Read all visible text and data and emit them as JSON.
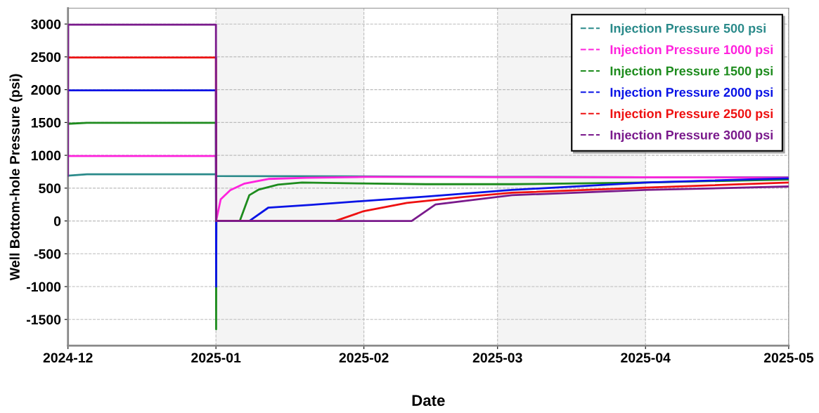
{
  "chart_data": {
    "type": "line",
    "xlabel": "Date",
    "ylabel": "Well Bottom-hole Pressure (psi)",
    "xlim": [
      "2024-12-01",
      "2025-05-01"
    ],
    "xticks": [
      {
        "value": "2024-12-01",
        "label": "2024-12"
      },
      {
        "value": "2025-01-01",
        "label": "2025-01"
      },
      {
        "value": "2025-02-01",
        "label": "2025-02"
      },
      {
        "value": "2025-03-01",
        "label": "2025-03"
      },
      {
        "value": "2025-04-01",
        "label": "2025-04"
      },
      {
        "value": "2025-05-01",
        "label": "2025-05"
      }
    ],
    "ylim": [
      -1900,
      3240
    ],
    "yticks": [
      -1500,
      -1000,
      -500,
      0,
      500,
      1000,
      1500,
      2000,
      2500,
      3000
    ],
    "grid": true,
    "legend": "top right",
    "line_style": "solid",
    "marker": "none",
    "bands": [
      {
        "axis": "x",
        "from": "2025-01-01",
        "to": "2025-02-01",
        "label": null,
        "color": "#f4f4f4"
      },
      {
        "axis": "x",
        "from": "2025-03-01",
        "to": "2025-04-01",
        "label": null,
        "color": "#f4f4f4"
      }
    ],
    "series": [
      {
        "name": "Injection Pressure 500 psi",
        "color": "#2a8a8a",
        "x": [
          "2024-12-01",
          "2024-12-05",
          "2025-01-01T00:00",
          "2025-01-01T02:00",
          "2025-02-01",
          "2025-03-01",
          "2025-04-01",
          "2025-05-01"
        ],
        "values": [
          690,
          710,
          710,
          685,
          678,
          672,
          665,
          665
        ]
      },
      {
        "name": "Injection Pressure 1000 psi",
        "color": "#ff22dd",
        "x": [
          "2024-12-01",
          "2025-01-01T00:00",
          "2025-01-01T01:00",
          "2025-01-02",
          "2025-01-04",
          "2025-01-07",
          "2025-01-12",
          "2025-01-20",
          "2025-02-01",
          "2025-03-01",
          "2025-04-01",
          "2025-05-01"
        ],
        "values": [
          990,
          990,
          0,
          330,
          470,
          570,
          640,
          657,
          670,
          668,
          665,
          660
        ]
      },
      {
        "name": "Injection Pressure 1500 psi",
        "color": "#1e8c1e",
        "x": [
          "2024-12-01",
          "2024-12-05",
          "2025-01-01T00:00",
          "2025-01-01T01:00",
          "2025-01-01T02:00",
          "2025-01-06",
          "2025-01-08",
          "2025-01-10",
          "2025-01-14",
          "2025-01-19",
          "2025-01-31",
          "2025-02-14",
          "2025-03-04",
          "2025-04-01",
          "2025-05-01"
        ],
        "values": [
          1480,
          1495,
          1495,
          -1650,
          0,
          0,
          393,
          479,
          554,
          586,
          571,
          560,
          560,
          586,
          632
        ]
      },
      {
        "name": "Injection Pressure 2000 psi",
        "color": "#0a14e6",
        "x": [
          "2024-12-01",
          "2025-01-01T00:00",
          "2025-01-01T01:00",
          "2025-01-01T02:00",
          "2025-01-08",
          "2025-01-12",
          "2025-01-21",
          "2025-01-31",
          "2025-02-14",
          "2025-03-04",
          "2025-04-01",
          "2025-05-01"
        ],
        "values": [
          1990,
          1990,
          -1000,
          0,
          0,
          204,
          246,
          300,
          372,
          472,
          586,
          650
        ]
      },
      {
        "name": "Injection Pressure 2500 psi",
        "color": "#ee1111",
        "x": [
          "2024-12-01",
          "2025-01-01T00:00",
          "2025-01-01T01:00",
          "2025-01-26",
          "2025-02-01",
          "2025-02-10",
          "2025-02-22",
          "2025-03-04",
          "2025-04-01",
          "2025-05-01"
        ],
        "values": [
          2490,
          2490,
          0,
          0,
          150,
          275,
          365,
          429,
          508,
          586
        ]
      },
      {
        "name": "Injection Pressure 3000 psi",
        "color": "#7a1a8c",
        "x": [
          "2024-12-01T00:00",
          "2024-12-01T01:00",
          "2025-01-01T00:00",
          "2025-01-01T01:00",
          "2025-02-11",
          "2025-02-16",
          "2025-03-04",
          "2025-04-01",
          "2025-05-01"
        ],
        "values": [
          690,
          2990,
          2990,
          0,
          0,
          250,
          393,
          472,
          525
        ]
      }
    ]
  }
}
